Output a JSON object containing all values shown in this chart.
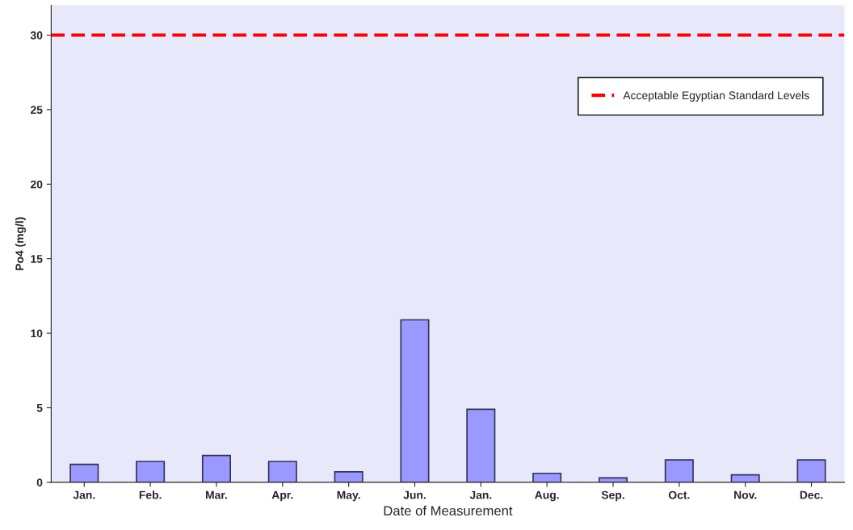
{
  "chart_data": {
    "type": "bar",
    "categories": [
      "Jan.",
      "Feb.",
      "Mar.",
      "Apr.",
      "May.",
      "Jun.",
      "Jan.",
      "Aug.",
      "Sep.",
      "Oct.",
      "Nov.",
      "Dec."
    ],
    "values": [
      1.2,
      1.4,
      1.8,
      1.4,
      0.7,
      10.9,
      4.9,
      0.6,
      0.3,
      1.5,
      0.5,
      1.5
    ],
    "color": "#9999ff",
    "xlabel": "Date of Measurement",
    "ylabel": "Po4 (mg/l)",
    "ylim": [
      0,
      32
    ],
    "yticks": [
      0,
      5,
      10,
      15,
      20,
      25,
      30
    ],
    "ref_lines": [
      {
        "axis": "y",
        "value": 30,
        "label": "Acceptable Egyptian Standard Levels",
        "color": "#ff0000",
        "line_style": "dashed"
      }
    ],
    "legend": "top right",
    "grid": false
  }
}
